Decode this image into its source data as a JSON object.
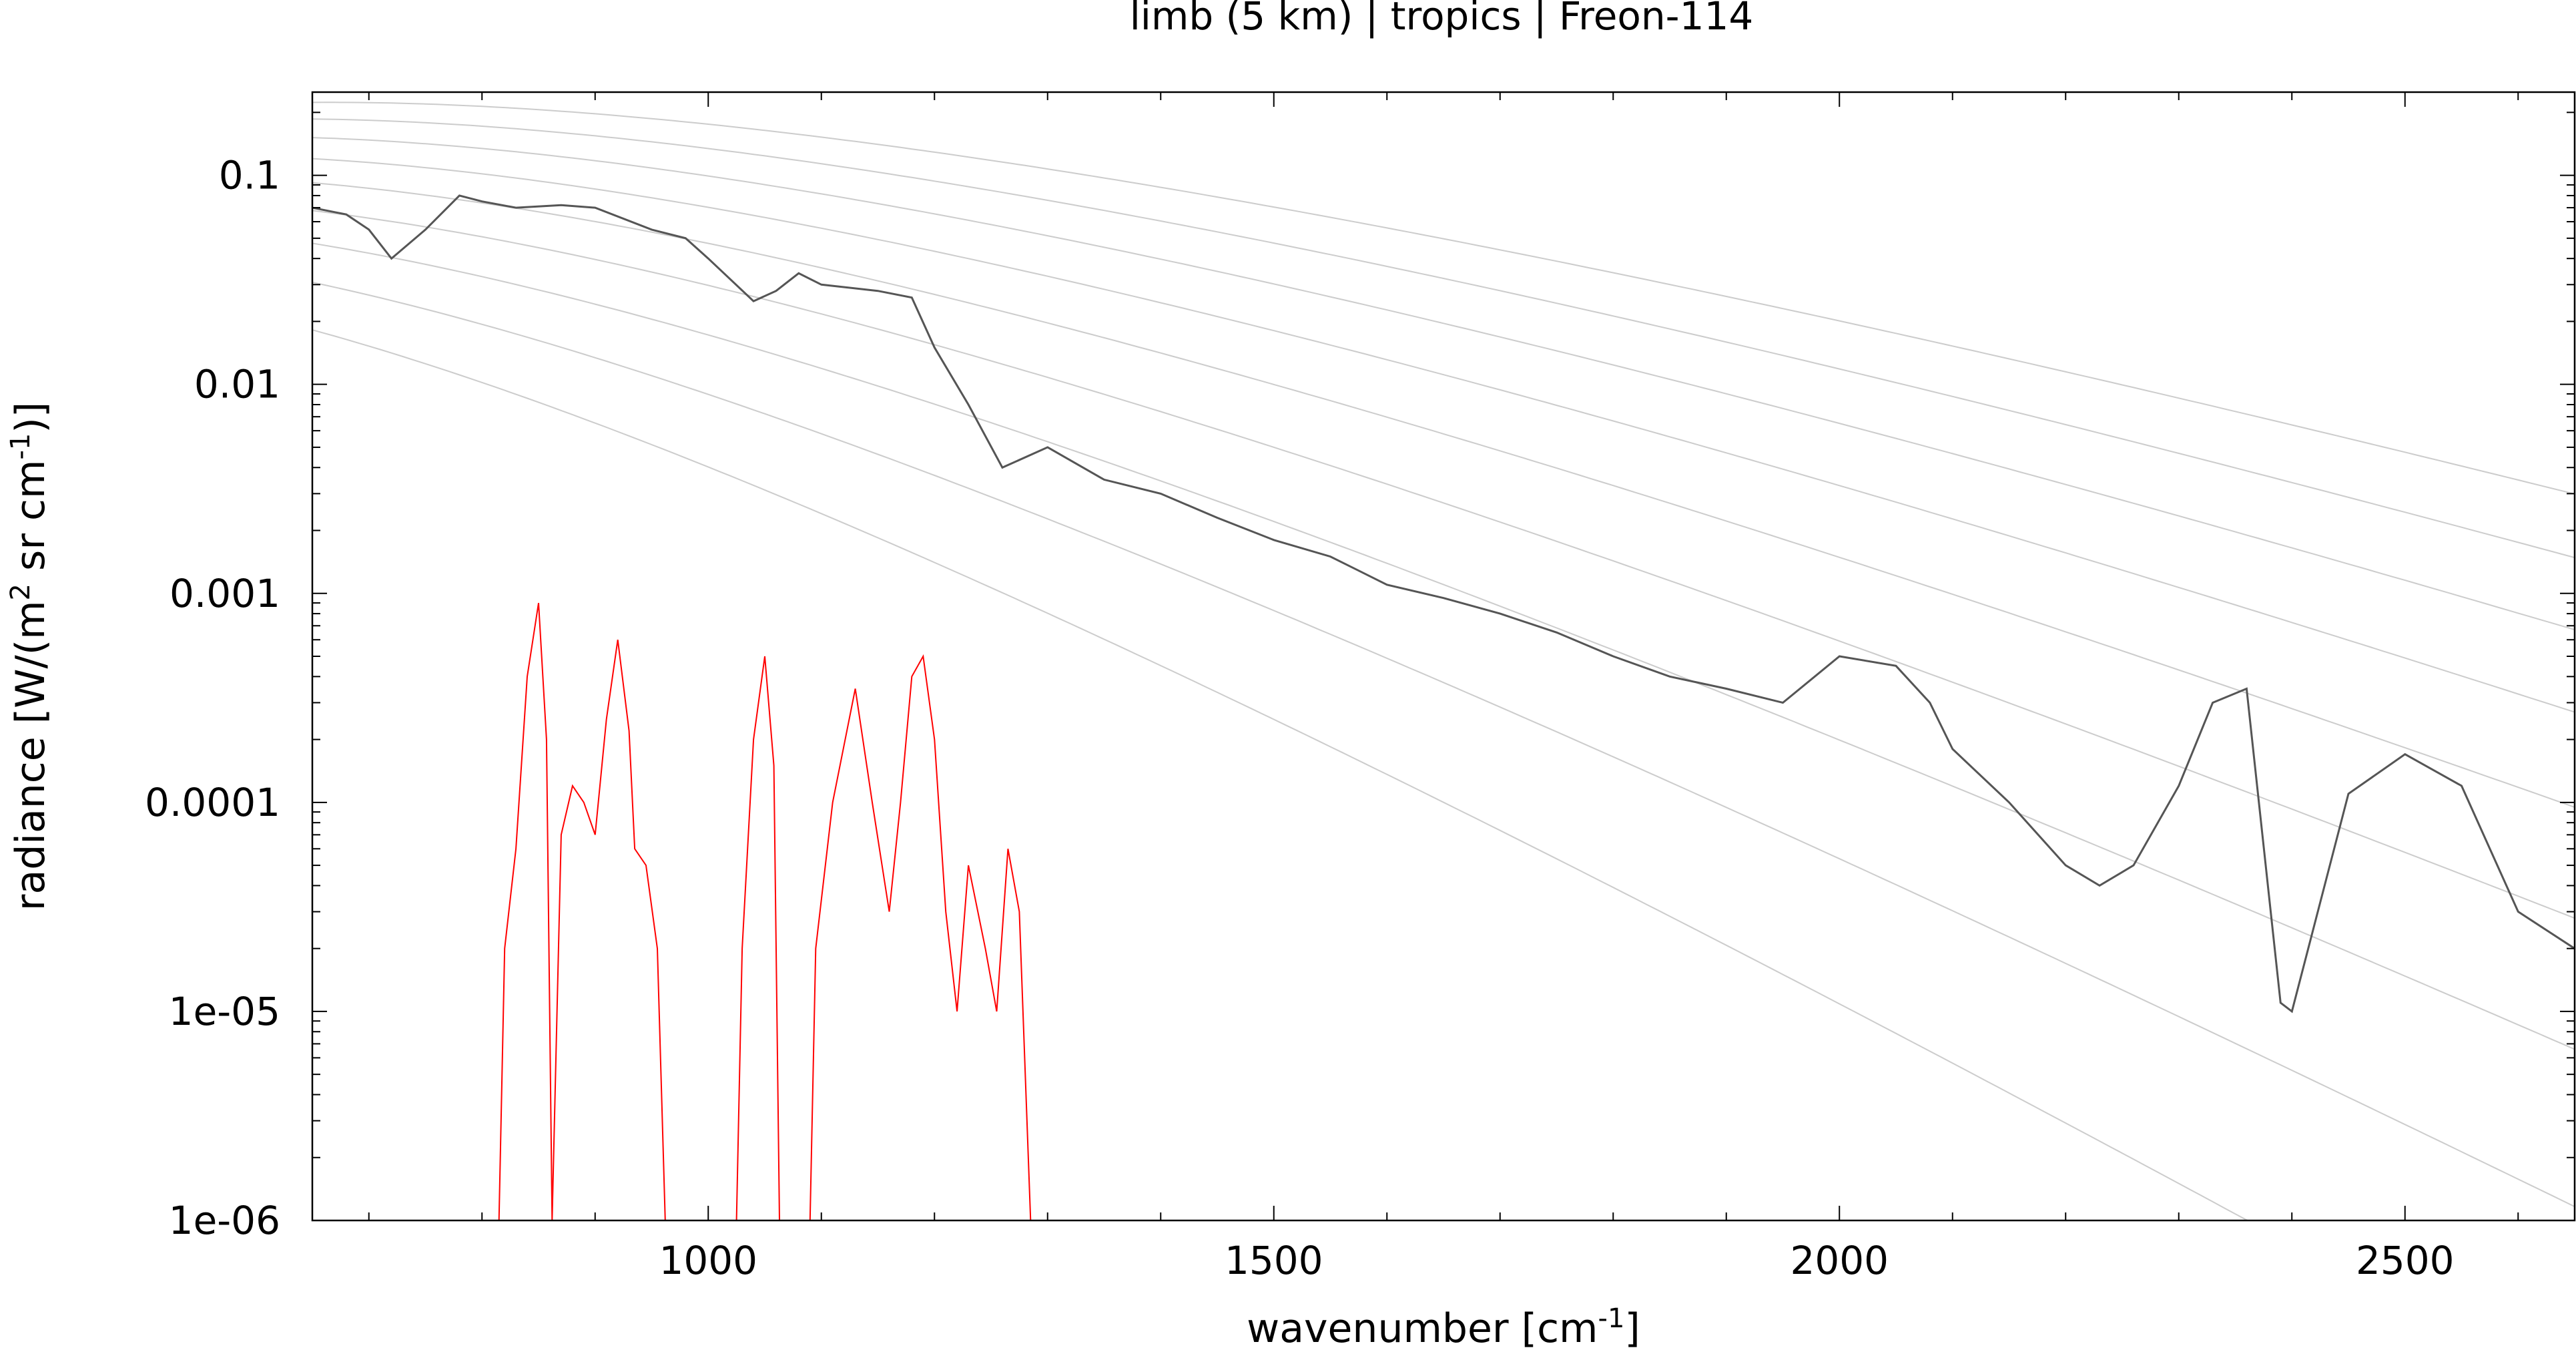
{
  "chart_data": {
    "type": "line",
    "title": "limb (5 km) | tropics | Freon-114",
    "xlabel": "wavenumber [cm-1]",
    "ylabel": "radiance [W/(m2 sr cm-1)]",
    "x_scale": "linear",
    "y_scale": "log",
    "xlim": [
      650,
      2650
    ],
    "ylim": [
      1e-06,
      0.25
    ],
    "x_ticks": [
      1000,
      1500,
      2000,
      2500
    ],
    "x_tick_labels": [
      "1000",
      "1500",
      "2000",
      "2500"
    ],
    "y_ticks": [
      1e-06,
      1e-05,
      0.0001,
      0.001,
      0.01,
      0.1
    ],
    "y_tick_labels": [
      "1e-06",
      "1e-05",
      "0.0001",
      "0.001",
      "0.01",
      "0.1"
    ],
    "grid": false,
    "legend": "none",
    "background_curves": {
      "description_units": "blackbody reference temperatures [K]",
      "temperatures": [
        180,
        200,
        220,
        240,
        260,
        280,
        300,
        320,
        340
      ],
      "color": "#cccccc"
    },
    "series": [
      {
        "color": "#555555",
        "x": [
          650,
          680,
          700,
          720,
          750,
          780,
          800,
          830,
          870,
          900,
          950,
          980,
          1000,
          1040,
          1060,
          1080,
          1100,
          1150,
          1180,
          1200,
          1230,
          1260,
          1300,
          1350,
          1400,
          1450,
          1500,
          1550,
          1600,
          1650,
          1700,
          1750,
          1800,
          1850,
          1900,
          1950,
          2000,
          2050,
          2080,
          2100,
          2150,
          2200,
          2230,
          2260,
          2300,
          2330,
          2360,
          2390,
          2400,
          2450,
          2500,
          2550,
          2600,
          2650
        ],
        "y": [
          0.07,
          0.065,
          0.055,
          0.04,
          0.055,
          0.08,
          0.075,
          0.07,
          0.072,
          0.07,
          0.055,
          0.05,
          0.04,
          0.025,
          0.028,
          0.034,
          0.03,
          0.028,
          0.026,
          0.015,
          0.008,
          0.004,
          0.005,
          0.0035,
          0.003,
          0.0023,
          0.0018,
          0.0015,
          0.0011,
          0.00095,
          0.0008,
          0.00065,
          0.0005,
          0.0004,
          0.00035,
          0.0003,
          0.0005,
          0.00045,
          0.0003,
          0.00018,
          0.0001,
          5e-05,
          4e-05,
          5e-05,
          0.00012,
          0.0003,
          0.00035,
          1.1e-05,
          1e-05,
          0.00011,
          0.00017,
          0.00012,
          3e-05,
          2e-05
        ]
      },
      {
        "color": "#ff0000",
        "x": [
          815,
          820,
          830,
          840,
          850,
          857,
          862,
          870,
          880,
          890,
          900,
          910,
          920,
          930,
          935,
          945,
          955,
          962,
          1025,
          1030,
          1040,
          1050,
          1058,
          1063,
          1090,
          1095,
          1110,
          1130,
          1145,
          1160,
          1170,
          1180,
          1190,
          1200,
          1210,
          1220,
          1230,
          1245,
          1255,
          1265,
          1275,
          1285
        ],
        "y": [
          1e-06,
          2e-05,
          6e-05,
          0.0004,
          0.0009,
          0.0002,
          1e-06,
          7e-05,
          0.00012,
          0.0001,
          7e-05,
          0.00025,
          0.0006,
          0.00022,
          6e-05,
          5e-05,
          2e-05,
          1e-06,
          1e-06,
          2e-05,
          0.0002,
          0.0005,
          0.00015,
          1e-06,
          1e-06,
          2e-05,
          0.0001,
          0.00035,
          0.0001,
          3e-05,
          0.0001,
          0.0004,
          0.0005,
          0.0002,
          3e-05,
          1e-05,
          5e-05,
          2e-05,
          1e-05,
          6e-05,
          3e-05,
          1e-06
        ]
      }
    ]
  }
}
